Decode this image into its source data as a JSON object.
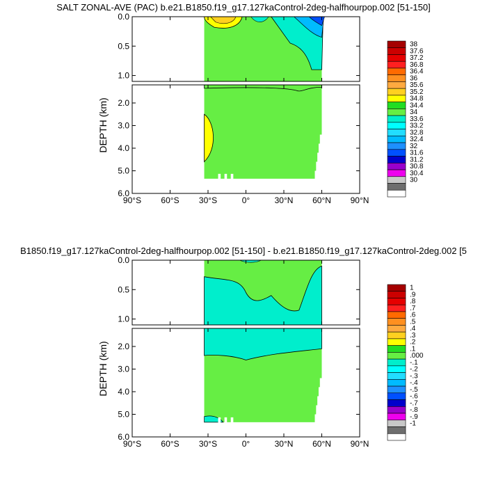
{
  "chart_data": [
    {
      "type": "heatmap",
      "title": "SALT ZONAL-AVE (PAC) b.e21.B1850.f19_g17.127kaControl-2deg-halfhourpop.002 [51-150]",
      "ylabel": "DEPTH (km)",
      "xlabel": "",
      "x_ticks": [
        "90°S",
        "60°S",
        "30°S",
        "0°",
        "30°N",
        "60°N",
        "90°N"
      ],
      "y_ticks_upper": [
        "0.0",
        "0.5",
        "1.0"
      ],
      "y_ticks_lower": [
        "2.0",
        "3.0",
        "4.0",
        "5.0",
        "6.0"
      ],
      "xlim": [
        -90,
        90
      ],
      "ylim": [
        0,
        6
      ],
      "ocean_extent_lat": [
        -33,
        60
      ],
      "colorbar_labels": [
        "38",
        "37.6",
        "37.2",
        "36.8",
        "36.4",
        "36",
        "35.6",
        "35.2",
        "34.8",
        "34.4",
        "34",
        "33.6",
        "33.2",
        "32.8",
        "32.4",
        "32",
        "31.6",
        "31.2",
        "30.8",
        "30.4",
        "30"
      ],
      "colorbar_colors": [
        "#a50000",
        "#cc0000",
        "#e60000",
        "#ff2020",
        "#ff6a00",
        "#ff9020",
        "#ffaa40",
        "#ffd020",
        "#ffff00",
        "#22dd22",
        "#66ee44",
        "#00eecc",
        "#00ffff",
        "#22ddff",
        "#00bbff",
        "#1e90ff",
        "#0050ff",
        "#0000cc",
        "#9900cc",
        "#ee00ee",
        "#c8c8c8",
        "#6e6e6e",
        "#ffffff"
      ],
      "regions": [
        {
          "name": "background",
          "value": "34.4–34.8",
          "color": "#66ee44"
        },
        {
          "name": "surface-south-high",
          "value": "35.2–36",
          "color": "#ffd020"
        },
        {
          "name": "deep-south-high",
          "value": "34.8–35.2",
          "color": "#ffff00"
        },
        {
          "name": "north-low",
          "value": "33.6–34",
          "color": "#00eecc"
        },
        {
          "name": "northern-surface-fresh",
          "value": "32–33",
          "color": "#1e90ff"
        }
      ]
    },
    {
      "type": "heatmap",
      "title": "B1850.f19_g17.127kaControl-2deg-halfhourpop.002 [51-150] - b.e21.B1850.f19_g17.127kaControl-2deg.002 [5",
      "ylabel": "DEPTH (km)",
      "xlabel": "",
      "x_ticks": [
        "90°S",
        "60°S",
        "30°S",
        "0°",
        "30°N",
        "60°N",
        "90°N"
      ],
      "y_ticks_upper": [
        "0.0",
        "0.5",
        "1.0"
      ],
      "y_ticks_lower": [
        "2.0",
        "3.0",
        "4.0",
        "5.0",
        "6.0"
      ],
      "xlim": [
        -90,
        90
      ],
      "ylim": [
        0,
        6
      ],
      "ocean_extent_lat": [
        -33,
        60
      ],
      "colorbar_labels": [
        "1",
        ".9",
        ".8",
        ".7",
        ".6",
        ".5",
        ".4",
        ".3",
        ".2",
        ".1",
        ".000",
        "-.1",
        "-.2",
        "-.3",
        "-.4",
        "-.5",
        "-.6",
        "-.7",
        "-.8",
        "-.9",
        "-1"
      ],
      "colorbar_colors": [
        "#a50000",
        "#cc0000",
        "#e60000",
        "#ff2020",
        "#ff6a00",
        "#ff9020",
        "#ffaa40",
        "#ffd020",
        "#ffff00",
        "#22dd22",
        "#66ee44",
        "#00eecc",
        "#00ffff",
        "#22ddff",
        "#00bbff",
        "#1e90ff",
        "#0050ff",
        "#0000cc",
        "#9900cc",
        "#ee00ee",
        "#c8c8c8",
        "#6e6e6e",
        "#ffffff"
      ],
      "regions": [
        {
          "name": "background",
          "value": "0 to 0.1",
          "color": "#66ee44"
        },
        {
          "name": "negative-anomaly",
          "value": "-0.1 to 0",
          "color": "#00eecc"
        }
      ]
    }
  ]
}
